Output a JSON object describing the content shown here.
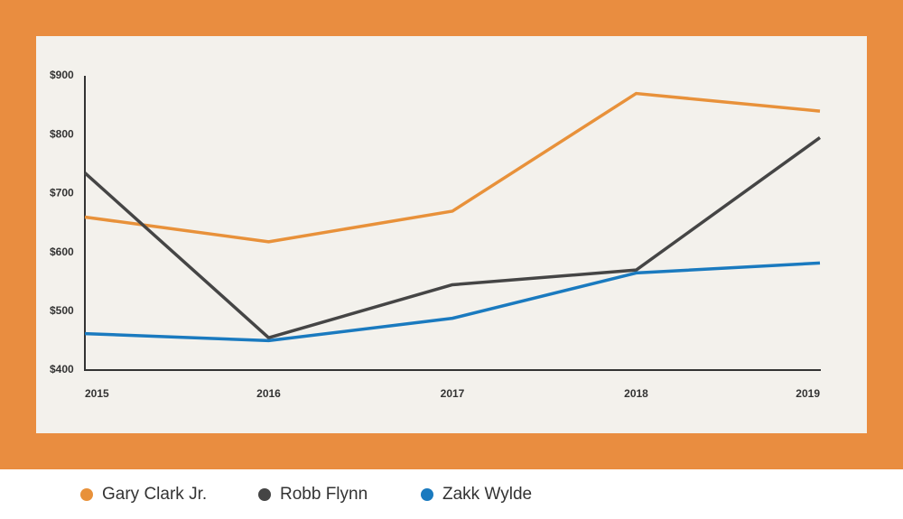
{
  "chart_data": {
    "type": "line",
    "categories": [
      "2015",
      "2016",
      "2017",
      "2018",
      "2019"
    ],
    "series": [
      {
        "name": "Gary Clark Jr.",
        "color": "#e8913a",
        "values": [
          660,
          618,
          670,
          870,
          840
        ]
      },
      {
        "name": "Robb Flynn",
        "color": "#454545",
        "values": [
          735,
          455,
          545,
          570,
          795
        ]
      },
      {
        "name": "Zakk Wylde",
        "color": "#1a7abf",
        "values": [
          462,
          450,
          488,
          565,
          582
        ]
      }
    ],
    "ylim": [
      400,
      900
    ],
    "yticks": [
      {
        "value": 400,
        "label": "$400"
      },
      {
        "value": 500,
        "label": "$500"
      },
      {
        "value": 600,
        "label": "$600"
      },
      {
        "value": 700,
        "label": "$700"
      },
      {
        "value": 800,
        "label": "$800"
      },
      {
        "value": 900,
        "label": "$900"
      }
    ],
    "grid": false,
    "legend": "bottom"
  }
}
